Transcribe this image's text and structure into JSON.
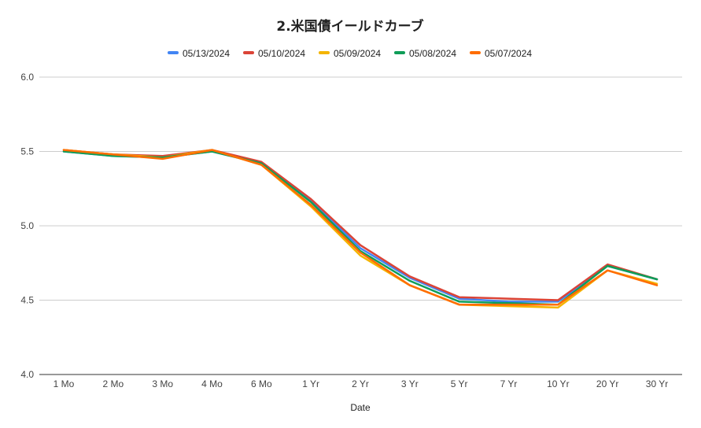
{
  "chart_data": {
    "type": "line",
    "title": "2.米国債イールドカーブ",
    "xlabel": "Date",
    "ylabel": "",
    "ylim": [
      4.0,
      6.0
    ],
    "yticks": [
      "6.0",
      "5.5",
      "5.0",
      "4.5",
      "4.0"
    ],
    "grid": true,
    "legend_position": "top",
    "categories": [
      "1 Mo",
      "2 Mo",
      "3 Mo",
      "4 Mo",
      "6 Mo",
      "1 Yr",
      "2 Yr",
      "3 Yr",
      "5 Yr",
      "7 Yr",
      "10 Yr",
      "20 Yr",
      "30 Yr"
    ],
    "series": [
      {
        "name": "05/13/2024",
        "color": "#4285f4",
        "values": [
          5.5,
          5.47,
          5.46,
          5.5,
          5.42,
          5.17,
          4.85,
          4.65,
          4.51,
          4.49,
          4.49,
          4.73,
          4.64
        ]
      },
      {
        "name": "05/10/2024",
        "color": "#db4437",
        "values": [
          5.51,
          5.48,
          5.47,
          5.51,
          5.43,
          5.18,
          4.87,
          4.66,
          4.52,
          4.51,
          4.5,
          4.74,
          4.64
        ]
      },
      {
        "name": "05/09/2024",
        "color": "#f4b400",
        "values": [
          5.51,
          5.48,
          5.46,
          5.51,
          5.41,
          5.13,
          4.8,
          4.6,
          4.47,
          4.46,
          4.45,
          4.7,
          4.61
        ]
      },
      {
        "name": "05/08/2024",
        "color": "#0f9d58",
        "values": [
          5.5,
          5.47,
          5.46,
          5.5,
          5.42,
          5.16,
          4.83,
          4.63,
          4.49,
          4.48,
          4.47,
          4.73,
          4.64
        ]
      },
      {
        "name": "05/07/2024",
        "color": "#ff6d01",
        "values": [
          5.51,
          5.48,
          5.45,
          5.51,
          5.41,
          5.14,
          4.82,
          4.6,
          4.47,
          4.47,
          4.47,
          4.7,
          4.6
        ]
      }
    ]
  }
}
